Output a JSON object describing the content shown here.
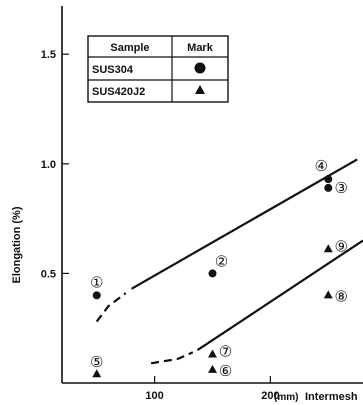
{
  "chart_data": {
    "type": "scatter",
    "title": "",
    "xlabel_prefix": "(mm)",
    "xlabel": "Intermesh",
    "ylabel": "Elongation (%)",
    "xlim": [
      20,
      280
    ],
    "ylim": [
      0,
      1.72
    ],
    "xticks": [
      100,
      200
    ],
    "xtick_labels": [
      "100",
      "200"
    ],
    "yticks": [
      0.5,
      1.0,
      1.5
    ],
    "ytick_labels": [
      "0.5",
      "1.0",
      "1.5"
    ],
    "legend": {
      "headers": [
        "Sample",
        "Mark"
      ],
      "rows": [
        {
          "sample": "SUS304",
          "marker": "circle"
        },
        {
          "sample": "SUS420J2",
          "marker": "triangle"
        }
      ]
    },
    "series": [
      {
        "name": "SUS304",
        "marker": "circle",
        "points": [
          {
            "x": 50,
            "y": 0.4,
            "label": "①"
          },
          {
            "x": 150,
            "y": 0.5,
            "label": "②"
          },
          {
            "x": 250,
            "y": 0.89,
            "label": "③"
          },
          {
            "x": 250,
            "y": 0.93,
            "label": "④"
          }
        ]
      },
      {
        "name": "SUS420J2",
        "marker": "triangle",
        "points": [
          {
            "x": 50,
            "y": 0.04,
            "label": "⑤"
          },
          {
            "x": 150,
            "y": 0.06,
            "label": "⑥"
          },
          {
            "x": 150,
            "y": 0.13,
            "label": "⑦"
          },
          {
            "x": 250,
            "y": 0.4,
            "label": "⑧"
          },
          {
            "x": 250,
            "y": 0.61,
            "label": "⑨"
          }
        ]
      }
    ],
    "trend_lines": [
      {
        "series": "SUS304",
        "dashed": [
          [
            50,
            0.28
          ],
          [
            60,
            0.35
          ],
          [
            75,
            0.41
          ]
        ],
        "solid": [
          [
            80,
            0.43
          ],
          [
            275,
            1.02
          ]
        ]
      },
      {
        "series": "SUS420J2",
        "dashed": [
          [
            97,
            0.09
          ],
          [
            120,
            0.11
          ],
          [
            133,
            0.14
          ]
        ],
        "solid": [
          [
            137,
            0.15
          ],
          [
            280,
            0.65
          ]
        ]
      }
    ]
  }
}
